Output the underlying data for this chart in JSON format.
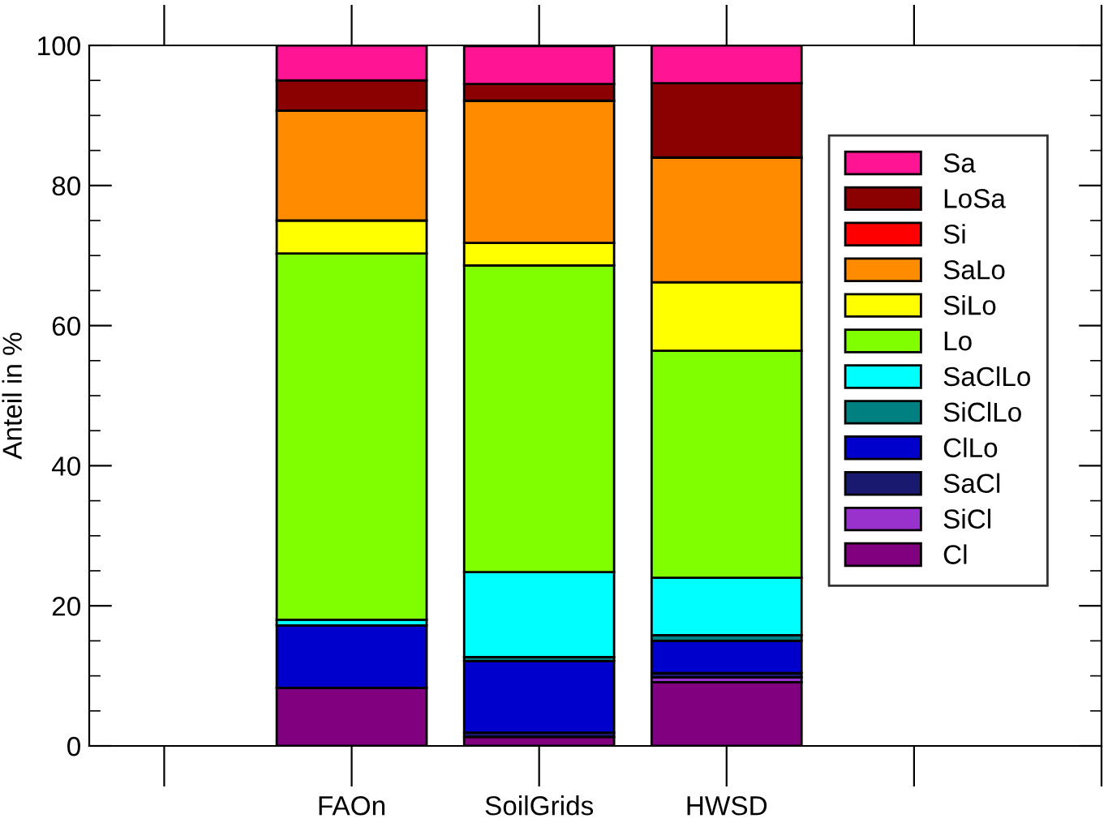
{
  "chart_data": {
    "type": "bar",
    "stacked": true,
    "ylabel": "Anteil in %",
    "categories": [
      null,
      "FAOn",
      "SoilGrids",
      "HWSD",
      null,
      null
    ],
    "ylim": [
      0,
      100
    ],
    "yticks": [
      0,
      20,
      40,
      60,
      80,
      100
    ],
    "legend": "right",
    "grid": false,
    "series": [
      {
        "name": "Cl",
        "color": "#800080",
        "values": [
          null,
          8.3,
          1.3,
          9.1,
          null,
          null
        ]
      },
      {
        "name": "SiCl",
        "color": "#9932cc",
        "values": [
          null,
          0,
          0,
          0.7,
          null,
          null
        ]
      },
      {
        "name": "SaCl",
        "color": "#191970",
        "values": [
          null,
          0,
          0.6,
          0.6,
          null,
          null
        ]
      },
      {
        "name": "ClLo",
        "color": "#0000cd",
        "values": [
          null,
          8.9,
          10.2,
          4.6,
          null,
          null
        ]
      },
      {
        "name": "SiClLo",
        "color": "#008080",
        "values": [
          null,
          0,
          0.6,
          0.8,
          null,
          null
        ]
      },
      {
        "name": "SaClLo",
        "color": "#00ffff",
        "values": [
          null,
          0.8,
          12.1,
          8.2,
          null,
          null
        ]
      },
      {
        "name": "Lo",
        "color": "#7fff00",
        "values": [
          null,
          52.3,
          43.8,
          32.4,
          null,
          null
        ]
      },
      {
        "name": "SiLo",
        "color": "#ffff00",
        "values": [
          null,
          4.7,
          3.2,
          9.8,
          null,
          null
        ]
      },
      {
        "name": "SaLo",
        "color": "#ff8c00",
        "values": [
          null,
          15.7,
          20.3,
          17.8,
          null,
          null
        ]
      },
      {
        "name": "Si",
        "color": "#ff0000",
        "values": [
          null,
          0,
          0,
          0,
          null,
          null
        ]
      },
      {
        "name": "LoSa",
        "color": "#8b0000",
        "values": [
          null,
          4.3,
          2.4,
          10.6,
          null,
          null
        ]
      },
      {
        "name": "Sa",
        "color": "#ff1493",
        "values": [
          null,
          5.0,
          5.4,
          5.4,
          null,
          null
        ]
      }
    ]
  }
}
